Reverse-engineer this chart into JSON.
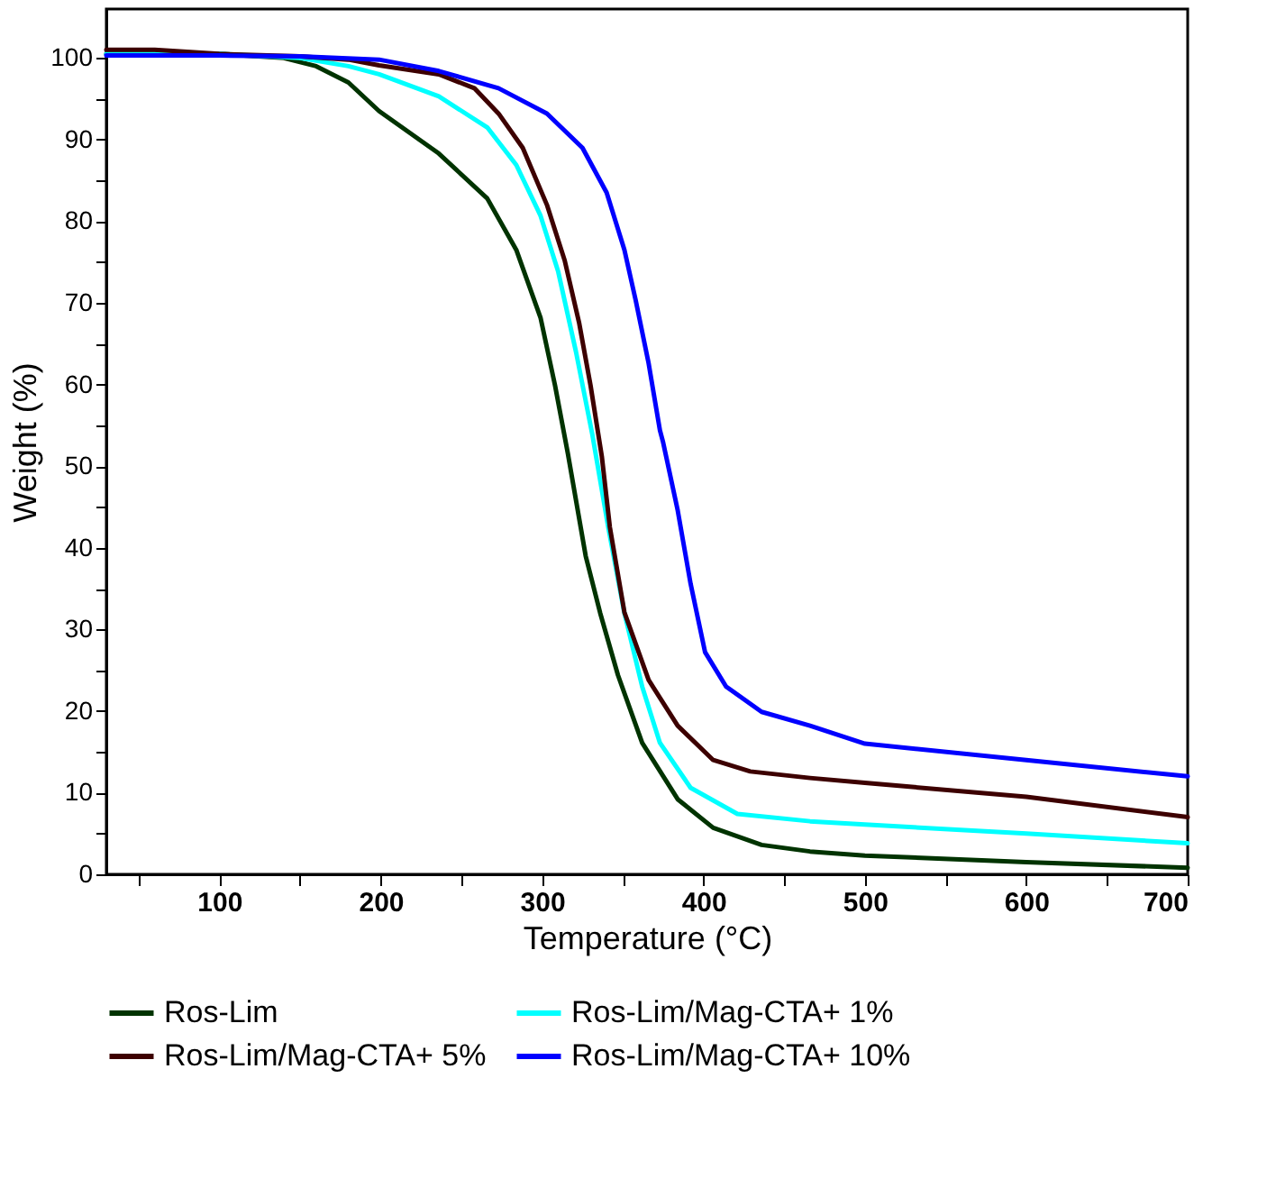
{
  "chart_data": {
    "type": "line",
    "xlabel": "Temperature (°C)",
    "ylabel": "Weight (%)",
    "xlim": [
      30,
      700
    ],
    "ylim": [
      0,
      106
    ],
    "xticks": [
      {
        "value": 50,
        "label": null
      },
      100,
      {
        "value": 150,
        "label": null
      },
      200,
      {
        "value": 250,
        "label": null
      },
      300,
      {
        "value": 350,
        "label": null
      },
      400,
      {
        "value": 450,
        "label": null
      },
      500,
      {
        "value": 550,
        "label": null
      },
      600,
      {
        "value": 650,
        "label": null
      },
      700
    ],
    "yticks": [
      0,
      {
        "value": 5,
        "label": null
      },
      10,
      {
        "value": 15,
        "label": null
      },
      20,
      {
        "value": 25,
        "label": null
      },
      30,
      {
        "value": 35,
        "label": null
      },
      40,
      {
        "value": 45,
        "label": null
      },
      50,
      {
        "value": 55,
        "label": null
      },
      60,
      {
        "value": 65,
        "label": null
      },
      70,
      {
        "value": 75,
        "label": null
      },
      80,
      {
        "value": 85,
        "label": null
      },
      90,
      {
        "value": 95,
        "label": null
      },
      100
    ],
    "legend": "bottom",
    "grid": false,
    "series": [
      {
        "name": "Ros-Lim",
        "color": "#003300",
        "x": [
          30,
          100,
          140,
          160,
          180,
          199,
          236,
          266,
          284,
          299,
          308,
          316,
          327,
          336,
          347,
          362,
          384,
          406,
          436,
          466,
          500,
          600,
          700
        ],
        "values": [
          100.5,
          100.5,
          100,
          99,
          97,
          93.5,
          88.3,
          82.8,
          76.5,
          68.2,
          59.9,
          51.5,
          39,
          32,
          24.4,
          16.1,
          9.2,
          5.7,
          3.6,
          2.8,
          2.3,
          1.5,
          0.8
        ]
      },
      {
        "name": "Ros-Lim/Mag-CTA+ 1%",
        "color": "#00ffff",
        "x": [
          30,
          100,
          150,
          180,
          199,
          236,
          266,
          284,
          299,
          310,
          321,
          331,
          341,
          351,
          362,
          373,
          392,
          421,
          466,
          500,
          600,
          700
        ],
        "values": [
          100.5,
          100.5,
          100,
          99,
          98,
          95.3,
          91.5,
          86.9,
          80.7,
          73.8,
          64,
          54,
          42.5,
          32,
          23,
          16.1,
          10.6,
          7.4,
          6.5,
          6.1,
          5,
          3.8
        ]
      },
      {
        "name": "Ros-Lim/Mag-CTA+ 5%",
        "color": "#3d0000",
        "x": [
          30,
          60,
          100,
          150,
          180,
          199,
          236,
          258,
          273,
          288,
          303,
          314,
          323,
          330,
          337,
          342,
          351,
          366,
          384,
          406,
          429,
          466,
          500,
          600,
          700
        ],
        "values": [
          101,
          101,
          100.5,
          100.2,
          99.8,
          99.1,
          98,
          96.3,
          93.2,
          89,
          82,
          75.2,
          67.5,
          59.9,
          51.2,
          42.5,
          32.1,
          23.8,
          18.2,
          14,
          12.6,
          11.8,
          11.2,
          9.5,
          7
        ]
      },
      {
        "name": "Ros-Lim/Mag-CTA+ 10%",
        "color": "#0000ff",
        "x": [
          30,
          100,
          150,
          199,
          236,
          273,
          303,
          325,
          340,
          351,
          358,
          366,
          373,
          375,
          384,
          392,
          401,
          414,
          436,
          466,
          500,
          600,
          700
        ],
        "values": [
          100.3,
          100.3,
          100.2,
          99.8,
          98.4,
          96.3,
          93.2,
          89,
          83.5,
          76.5,
          70.3,
          62.6,
          54.4,
          52.9,
          44.6,
          35.6,
          27.2,
          23,
          19.9,
          18.2,
          16,
          14,
          12
        ]
      }
    ]
  }
}
